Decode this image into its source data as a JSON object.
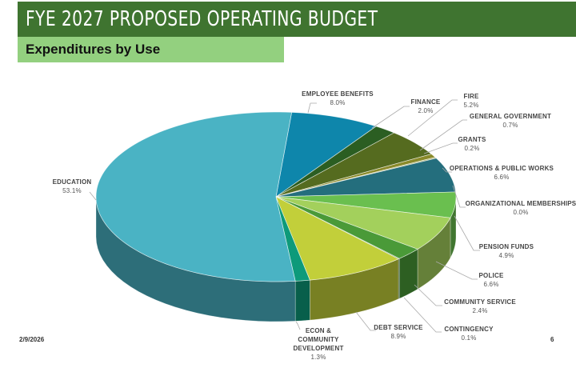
{
  "slide": {
    "title": "FYE 2027 PROPOSED OPERATING BUDGET",
    "subtitle": "Expenditures by Use",
    "date": "2/9/2026",
    "page_number": "6",
    "colors": {
      "title_bar": "#3f7430",
      "subtitle_bar": "#93d07f"
    }
  },
  "chart_data": {
    "type": "pie",
    "style": "3d",
    "title": "",
    "categories": [
      "EMPLOYEE BENEFITS",
      "FINANCE",
      "FIRE",
      "GENERAL GOVERNMENT",
      "GRANTS",
      "OPERATIONS & PUBLIC WORKS",
      "ORGANIZATIONAL MEMBERSHIPS",
      "PENSION FUNDS",
      "POLICE",
      "COMMUNITY SERVICE",
      "CONTINGENCY",
      "DEBT SERVICE",
      "ECON & COMMUNITY DEVELOPMENT",
      "EDUCATION"
    ],
    "values": [
      8.0,
      2.0,
      5.2,
      0.7,
      0.2,
      6.6,
      0.0,
      4.9,
      6.6,
      2.4,
      0.1,
      8.9,
      1.3,
      53.1
    ],
    "unit": "%",
    "colors": [
      "#0e86ab",
      "#2b5e22",
      "#556b1f",
      "#8a8a2a",
      "#aab070",
      "#246e7d",
      "#6abf4f",
      "#6abf4f",
      "#a3d05c",
      "#4a9a38",
      "#2a5a1a",
      "#c2cf3a",
      "#0d9a7a",
      "#4ab3c4"
    ],
    "legend": "none",
    "data_labels": "outside with leader lines"
  }
}
